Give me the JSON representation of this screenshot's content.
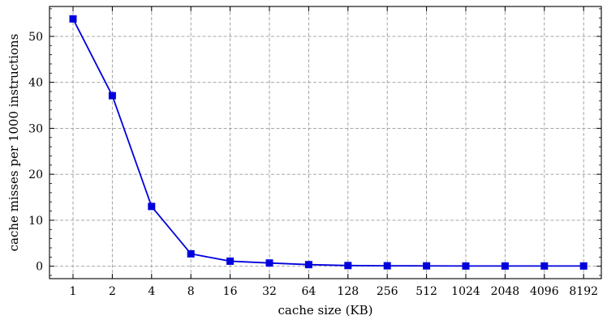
{
  "chart_data": {
    "type": "line",
    "title": "",
    "xlabel": "cache size (KB)",
    "ylabel": "cache misses per 1000 instructions",
    "categories": [
      "1",
      "2",
      "4",
      "8",
      "16",
      "32",
      "64",
      "128",
      "256",
      "512",
      "1024",
      "2048",
      "4096",
      "8192"
    ],
    "series": [
      {
        "values": [
          53.8,
          37.1,
          13.0,
          2.7,
          1.1,
          0.7,
          0.35,
          0.15,
          0.1,
          0.08,
          0.05,
          0.05,
          0.05,
          0.05
        ],
        "color": "#0000dd",
        "marker": "square"
      }
    ],
    "yticks": [
      0,
      10,
      20,
      30,
      40,
      50
    ],
    "ylim": [
      -2.7,
      56.5
    ],
    "grid": true,
    "grid_style": "dashed"
  }
}
